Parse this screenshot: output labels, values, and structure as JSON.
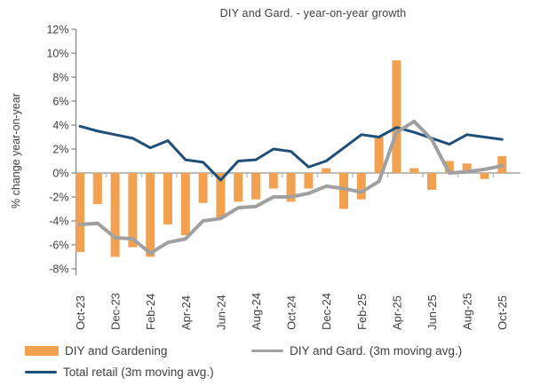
{
  "title": "DIY and Gard. - year-on-year growth",
  "y_axis_title": "% change year-on-year",
  "colors": {
    "bar_orange": "#F1A14F",
    "line_navy": "#1F4E79",
    "line_gray": "#A0A0A0",
    "zero_axis": "#A6A6A6",
    "y_axis": "#808080",
    "text": "#404040"
  },
  "legend": {
    "diy_gardening": "DIY and Gardening",
    "total_retail": "Total retail (3m moving avg.)",
    "diy_avg": "DIY and Gard. (3m moving avg.)"
  },
  "chart_data": {
    "type": "combo",
    "categories": [
      "Oct-23",
      "Nov-23",
      "Dec-23",
      "Jan-24",
      "Feb-24",
      "Mar-24",
      "Apr-24",
      "May-24",
      "Jun-24",
      "Jul-24",
      "Aug-24",
      "Sep-24",
      "Oct-24",
      "Nov-24",
      "Dec-24",
      "Jan-25",
      "Feb-25",
      "Mar-25",
      "Apr-25",
      "May-25",
      "Jun-25",
      "Jul-25",
      "Aug-25",
      "Sep-25",
      "Oct-25"
    ],
    "x_tick_labels": [
      "Oct-23",
      "Dec-23",
      "Feb-24",
      "Apr-24",
      "Jun-24",
      "Aug-24",
      "Oct-24",
      "Dec-24",
      "Feb-25",
      "Apr-25",
      "Jun-25",
      "Aug-25",
      "Oct-25"
    ],
    "series": [
      {
        "name": "DIY and Gardening",
        "type": "bar",
        "color": "#F1A14F",
        "values": [
          -6.6,
          -2.6,
          -7.0,
          -6.2,
          -7.0,
          -4.3,
          -5.2,
          -2.5,
          -3.7,
          -2.4,
          -2.2,
          -1.3,
          -2.4,
          -1.3,
          0.4,
          -3.0,
          -2.2,
          3.0,
          9.4,
          0.4,
          -1.4,
          1.0,
          0.8,
          -0.5,
          1.4
        ]
      },
      {
        "name": "Total retail (3m moving avg.)",
        "type": "line",
        "color": "#1F4E79",
        "values": [
          3.9,
          3.5,
          3.2,
          2.9,
          2.1,
          2.7,
          1.1,
          0.9,
          -0.6,
          1.0,
          1.1,
          2.0,
          1.8,
          0.5,
          1.0,
          2.1,
          3.2,
          3.0,
          3.8,
          3.4,
          2.9,
          2.4,
          3.2,
          3.0,
          2.8
        ]
      },
      {
        "name": "DIY and Gard. (3m moving avg.)",
        "type": "line",
        "color": "#A0A0A0",
        "values": [
          -4.3,
          -4.2,
          -5.4,
          -5.5,
          -6.7,
          -5.8,
          -5.5,
          -4.0,
          -3.8,
          -2.9,
          -2.8,
          -2.0,
          -2.0,
          -1.7,
          -1.1,
          -1.3,
          -1.6,
          -0.7,
          3.4,
          4.3,
          2.8,
          0.0,
          0.1,
          0.3,
          0.6
        ]
      }
    ],
    "title": "DIY and Gard. - year-on-year growth",
    "xlabel": "",
    "ylabel": "% change year-on-year",
    "ylim": [
      -8,
      12
    ],
    "y_tick_step": 2,
    "y_tick_labels": [
      "12%",
      "10%",
      "8%",
      "6%",
      "4%",
      "2%",
      "0%",
      "-2%",
      "-4%",
      "-6%",
      "-8%"
    ],
    "grid": "zero-line-only",
    "legend_position": "bottom"
  }
}
